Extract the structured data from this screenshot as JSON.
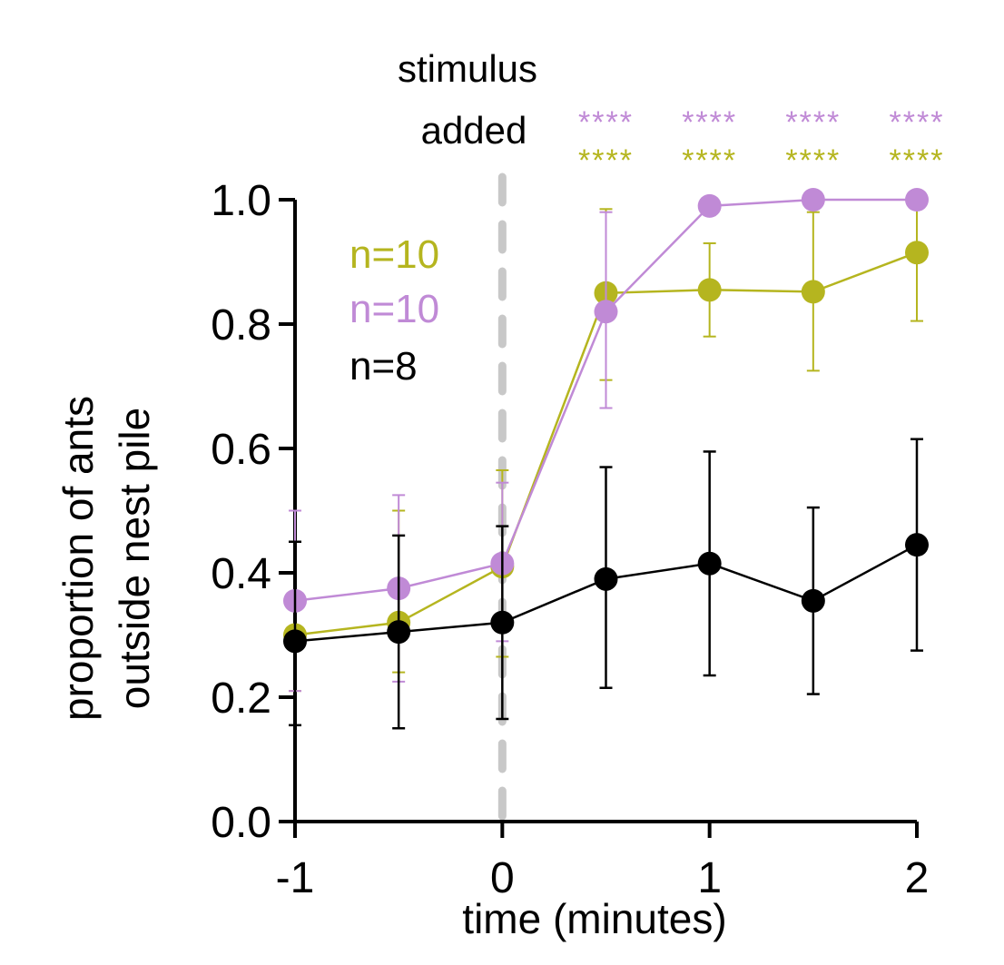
{
  "chart_data": {
    "type": "line",
    "xlabel": "time (minutes)",
    "ylabel_lines": [
      "proportion of ants",
      "outside nest pile"
    ],
    "xlim": [
      -1,
      2
    ],
    "ylim": [
      0,
      1
    ],
    "x_ticks": [
      -1,
      0,
      1,
      2
    ],
    "x_tick_labels": [
      "-1",
      "0",
      "1",
      "2"
    ],
    "y_ticks": [
      0,
      0.2,
      0.4,
      0.6,
      0.8,
      1.0
    ],
    "y_tick_labels": [
      "0.0",
      "0.2",
      "0.4",
      "0.6",
      "0.8",
      "1.0"
    ],
    "x": [
      -1,
      -0.5,
      0,
      0.5,
      1,
      1.5,
      2
    ],
    "stimulus": {
      "x": 0,
      "label_lines": [
        "stimulus",
        "added"
      ],
      "color": "#c8c8c8"
    },
    "series": [
      {
        "name": "olive",
        "legend": "n=10",
        "color": "#b5b51f",
        "values": [
          0.3,
          0.32,
          0.41,
          0.85,
          0.855,
          0.852,
          0.915
        ],
        "err_low": [
          0.21,
          0.24,
          0.265,
          0.71,
          0.78,
          0.725,
          0.805
        ],
        "err_high": [
          0.5,
          0.5,
          0.565,
          0.985,
          0.93,
          0.98,
          0.99
        ]
      },
      {
        "name": "purple",
        "legend": "n=10",
        "color": "#c08ad6",
        "values": [
          0.355,
          0.375,
          0.415,
          0.82,
          0.99,
          1.0,
          1.0
        ],
        "err_low": [
          0.21,
          0.225,
          0.29,
          0.665,
          0.975,
          1.0,
          1.0
        ],
        "err_high": [
          0.5,
          0.525,
          0.545,
          0.98,
          1.0,
          1.0,
          1.0
        ]
      },
      {
        "name": "black",
        "legend": "n=8",
        "color": "#000000",
        "values": [
          0.29,
          0.305,
          0.32,
          0.39,
          0.415,
          0.355,
          0.445
        ],
        "err_low": [
          0.155,
          0.15,
          0.165,
          0.215,
          0.235,
          0.205,
          0.275
        ],
        "err_high": [
          0.45,
          0.46,
          0.475,
          0.57,
          0.595,
          0.505,
          0.615
        ]
      }
    ],
    "significance": [
      {
        "x": 0.5,
        "purple": "****",
        "olive": "****"
      },
      {
        "x": 1.0,
        "purple": "****",
        "olive": "****"
      },
      {
        "x": 1.5,
        "purple": "****",
        "olive": "****"
      },
      {
        "x": 2.0,
        "purple": "****",
        "olive": "****"
      }
    ]
  }
}
